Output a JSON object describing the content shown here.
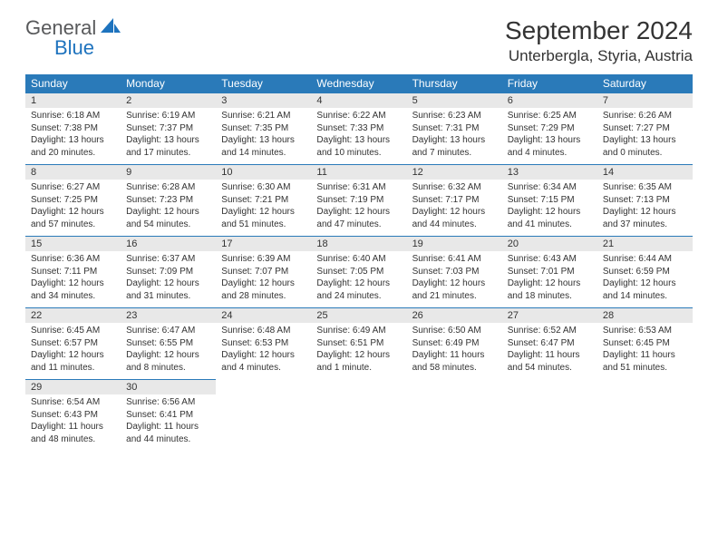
{
  "logo": {
    "general": "General",
    "blue": "Blue",
    "sail_color": "#1e73be",
    "text_color": "#58595b"
  },
  "title": "September 2024",
  "location": "Unterbergla, Styria, Austria",
  "colors": {
    "header_bg": "#2a7ab9",
    "header_text": "#ffffff",
    "daynum_bg": "#e8e8e8",
    "border": "#2a7ab9",
    "text": "#333333"
  },
  "dow": [
    "Sunday",
    "Monday",
    "Tuesday",
    "Wednesday",
    "Thursday",
    "Friday",
    "Saturday"
  ],
  "weeks": [
    [
      {
        "n": "1",
        "sunrise": "Sunrise: 6:18 AM",
        "sunset": "Sunset: 7:38 PM",
        "daylight": "Daylight: 13 hours and 20 minutes."
      },
      {
        "n": "2",
        "sunrise": "Sunrise: 6:19 AM",
        "sunset": "Sunset: 7:37 PM",
        "daylight": "Daylight: 13 hours and 17 minutes."
      },
      {
        "n": "3",
        "sunrise": "Sunrise: 6:21 AM",
        "sunset": "Sunset: 7:35 PM",
        "daylight": "Daylight: 13 hours and 14 minutes."
      },
      {
        "n": "4",
        "sunrise": "Sunrise: 6:22 AM",
        "sunset": "Sunset: 7:33 PM",
        "daylight": "Daylight: 13 hours and 10 minutes."
      },
      {
        "n": "5",
        "sunrise": "Sunrise: 6:23 AM",
        "sunset": "Sunset: 7:31 PM",
        "daylight": "Daylight: 13 hours and 7 minutes."
      },
      {
        "n": "6",
        "sunrise": "Sunrise: 6:25 AM",
        "sunset": "Sunset: 7:29 PM",
        "daylight": "Daylight: 13 hours and 4 minutes."
      },
      {
        "n": "7",
        "sunrise": "Sunrise: 6:26 AM",
        "sunset": "Sunset: 7:27 PM",
        "daylight": "Daylight: 13 hours and 0 minutes."
      }
    ],
    [
      {
        "n": "8",
        "sunrise": "Sunrise: 6:27 AM",
        "sunset": "Sunset: 7:25 PM",
        "daylight": "Daylight: 12 hours and 57 minutes."
      },
      {
        "n": "9",
        "sunrise": "Sunrise: 6:28 AM",
        "sunset": "Sunset: 7:23 PM",
        "daylight": "Daylight: 12 hours and 54 minutes."
      },
      {
        "n": "10",
        "sunrise": "Sunrise: 6:30 AM",
        "sunset": "Sunset: 7:21 PM",
        "daylight": "Daylight: 12 hours and 51 minutes."
      },
      {
        "n": "11",
        "sunrise": "Sunrise: 6:31 AM",
        "sunset": "Sunset: 7:19 PM",
        "daylight": "Daylight: 12 hours and 47 minutes."
      },
      {
        "n": "12",
        "sunrise": "Sunrise: 6:32 AM",
        "sunset": "Sunset: 7:17 PM",
        "daylight": "Daylight: 12 hours and 44 minutes."
      },
      {
        "n": "13",
        "sunrise": "Sunrise: 6:34 AM",
        "sunset": "Sunset: 7:15 PM",
        "daylight": "Daylight: 12 hours and 41 minutes."
      },
      {
        "n": "14",
        "sunrise": "Sunrise: 6:35 AM",
        "sunset": "Sunset: 7:13 PM",
        "daylight": "Daylight: 12 hours and 37 minutes."
      }
    ],
    [
      {
        "n": "15",
        "sunrise": "Sunrise: 6:36 AM",
        "sunset": "Sunset: 7:11 PM",
        "daylight": "Daylight: 12 hours and 34 minutes."
      },
      {
        "n": "16",
        "sunrise": "Sunrise: 6:37 AM",
        "sunset": "Sunset: 7:09 PM",
        "daylight": "Daylight: 12 hours and 31 minutes."
      },
      {
        "n": "17",
        "sunrise": "Sunrise: 6:39 AM",
        "sunset": "Sunset: 7:07 PM",
        "daylight": "Daylight: 12 hours and 28 minutes."
      },
      {
        "n": "18",
        "sunrise": "Sunrise: 6:40 AM",
        "sunset": "Sunset: 7:05 PM",
        "daylight": "Daylight: 12 hours and 24 minutes."
      },
      {
        "n": "19",
        "sunrise": "Sunrise: 6:41 AM",
        "sunset": "Sunset: 7:03 PM",
        "daylight": "Daylight: 12 hours and 21 minutes."
      },
      {
        "n": "20",
        "sunrise": "Sunrise: 6:43 AM",
        "sunset": "Sunset: 7:01 PM",
        "daylight": "Daylight: 12 hours and 18 minutes."
      },
      {
        "n": "21",
        "sunrise": "Sunrise: 6:44 AM",
        "sunset": "Sunset: 6:59 PM",
        "daylight": "Daylight: 12 hours and 14 minutes."
      }
    ],
    [
      {
        "n": "22",
        "sunrise": "Sunrise: 6:45 AM",
        "sunset": "Sunset: 6:57 PM",
        "daylight": "Daylight: 12 hours and 11 minutes."
      },
      {
        "n": "23",
        "sunrise": "Sunrise: 6:47 AM",
        "sunset": "Sunset: 6:55 PM",
        "daylight": "Daylight: 12 hours and 8 minutes."
      },
      {
        "n": "24",
        "sunrise": "Sunrise: 6:48 AM",
        "sunset": "Sunset: 6:53 PM",
        "daylight": "Daylight: 12 hours and 4 minutes."
      },
      {
        "n": "25",
        "sunrise": "Sunrise: 6:49 AM",
        "sunset": "Sunset: 6:51 PM",
        "daylight": "Daylight: 12 hours and 1 minute."
      },
      {
        "n": "26",
        "sunrise": "Sunrise: 6:50 AM",
        "sunset": "Sunset: 6:49 PM",
        "daylight": "Daylight: 11 hours and 58 minutes."
      },
      {
        "n": "27",
        "sunrise": "Sunrise: 6:52 AM",
        "sunset": "Sunset: 6:47 PM",
        "daylight": "Daylight: 11 hours and 54 minutes."
      },
      {
        "n": "28",
        "sunrise": "Sunrise: 6:53 AM",
        "sunset": "Sunset: 6:45 PM",
        "daylight": "Daylight: 11 hours and 51 minutes."
      }
    ],
    [
      {
        "n": "29",
        "sunrise": "Sunrise: 6:54 AM",
        "sunset": "Sunset: 6:43 PM",
        "daylight": "Daylight: 11 hours and 48 minutes."
      },
      {
        "n": "30",
        "sunrise": "Sunrise: 6:56 AM",
        "sunset": "Sunset: 6:41 PM",
        "daylight": "Daylight: 11 hours and 44 minutes."
      },
      null,
      null,
      null,
      null,
      null
    ]
  ]
}
